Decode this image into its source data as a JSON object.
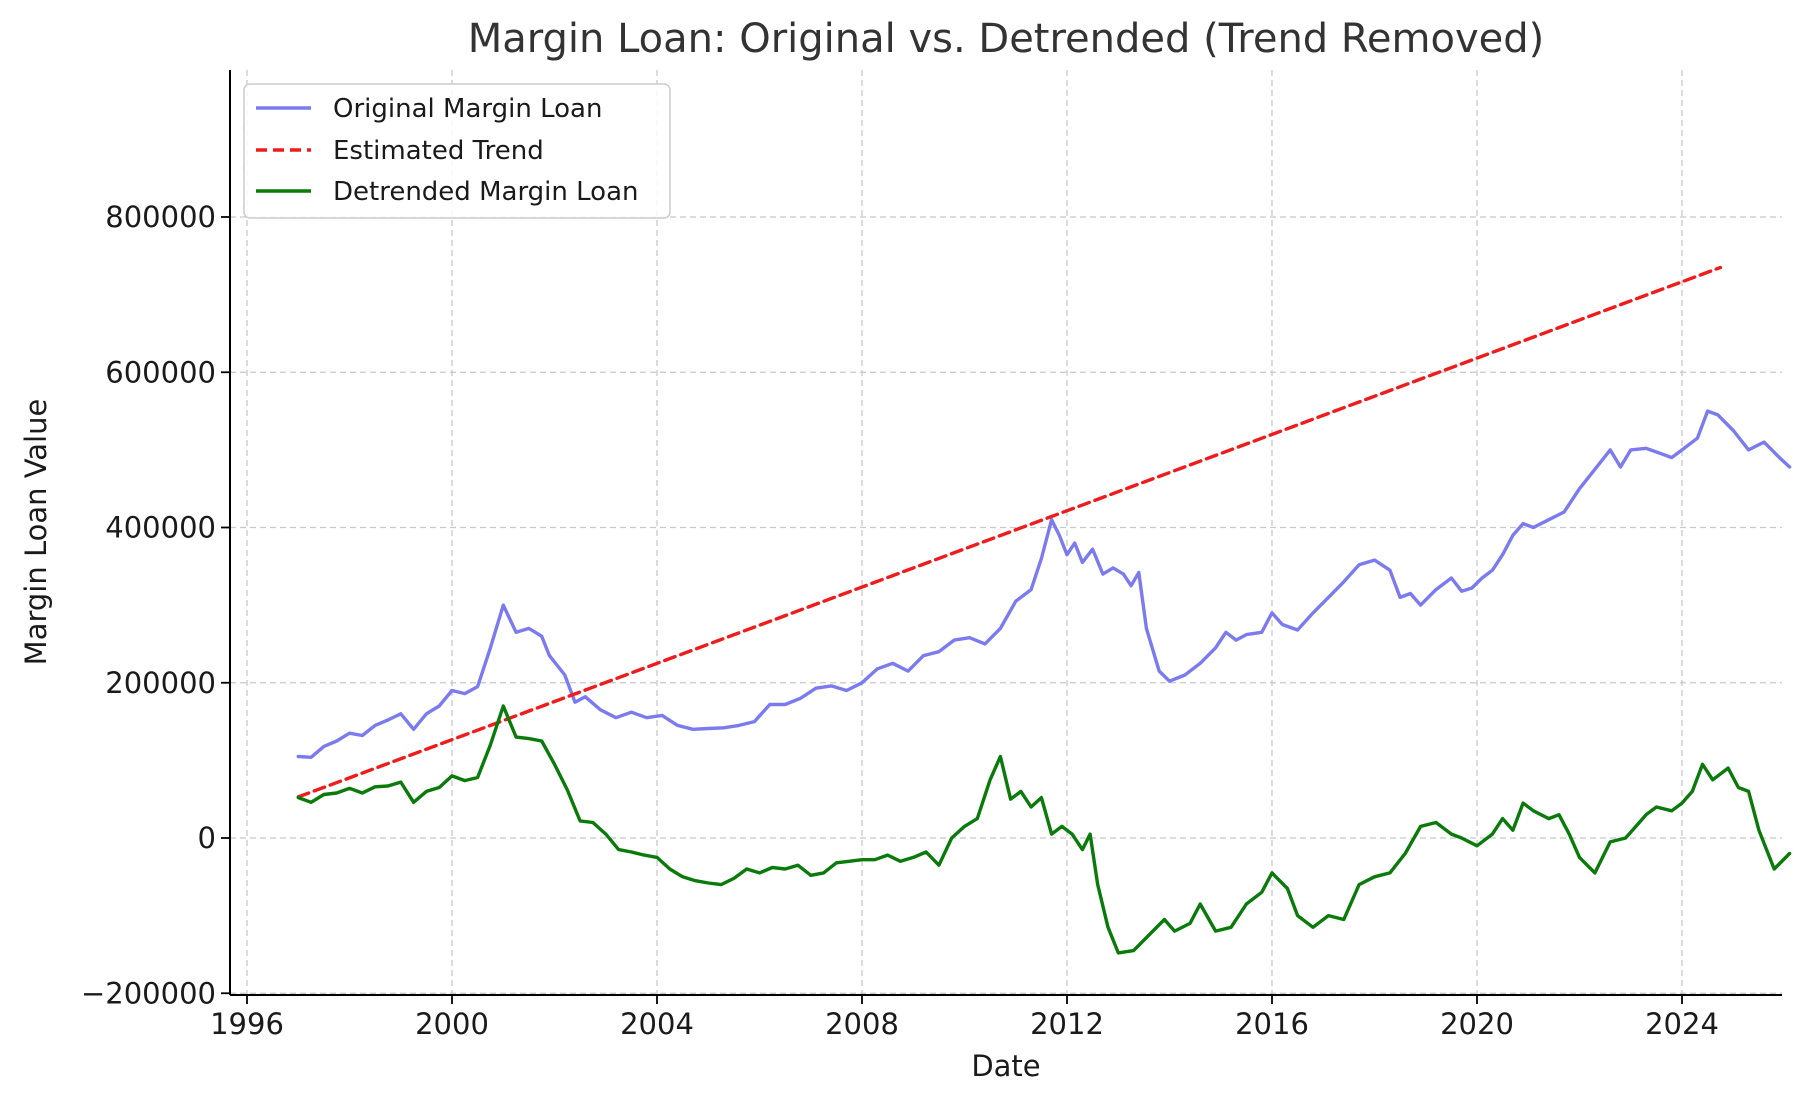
{
  "chart_data": {
    "type": "line",
    "title": "Margin Loan: Original vs. Detrended (Trend Removed)",
    "xlabel": "Date",
    "ylabel": "Margin Loan Value",
    "xlim": [
      1995.7,
      2026.2
    ],
    "ylim": [
      -200000,
      1000000
    ],
    "x_ticks": [
      1996,
      2000,
      2004,
      2008,
      2012,
      2016,
      2020,
      2024
    ],
    "x_tick_labels": [
      "1996",
      "2000",
      "2004",
      "2008",
      "2012",
      "2016",
      "2020",
      "2024"
    ],
    "y_ticks": [
      -200000,
      0,
      200000,
      400000,
      600000,
      800000
    ],
    "y_tick_labels": [
      "−200000",
      "0",
      "200000",
      "400000",
      "600000",
      "800000"
    ],
    "grid": true,
    "legend_position": "top-left",
    "series": [
      {
        "name": "Original Margin Loan",
        "color": "#7b7bef",
        "style": "solid",
        "points": [
          [
            1997.0,
            105000
          ],
          [
            1997.25,
            104000
          ],
          [
            1997.5,
            118000
          ],
          [
            1997.75,
            125000
          ],
          [
            1998.0,
            135000
          ],
          [
            1998.25,
            132000
          ],
          [
            1998.5,
            145000
          ],
          [
            1998.75,
            152000
          ],
          [
            1999.0,
            160000
          ],
          [
            1999.25,
            140000
          ],
          [
            1999.5,
            160000
          ],
          [
            1999.75,
            170000
          ],
          [
            2000.0,
            190000
          ],
          [
            2000.25,
            186000
          ],
          [
            2000.5,
            195000
          ],
          [
            2000.75,
            245000
          ],
          [
            2001.0,
            300000
          ],
          [
            2001.25,
            265000
          ],
          [
            2001.5,
            270000
          ],
          [
            2001.75,
            260000
          ],
          [
            2001.9,
            235000
          ],
          [
            2002.2,
            210000
          ],
          [
            2002.4,
            175000
          ],
          [
            2002.6,
            182000
          ],
          [
            2002.9,
            165000
          ],
          [
            2003.2,
            155000
          ],
          [
            2003.5,
            162000
          ],
          [
            2003.8,
            155000
          ],
          [
            2004.1,
            158000
          ],
          [
            2004.4,
            145000
          ],
          [
            2004.7,
            140000
          ],
          [
            2005.0,
            141000
          ],
          [
            2005.3,
            142000
          ],
          [
            2005.6,
            145000
          ],
          [
            2005.9,
            150000
          ],
          [
            2006.2,
            172000
          ],
          [
            2006.5,
            172000
          ],
          [
            2006.8,
            180000
          ],
          [
            2007.1,
            193000
          ],
          [
            2007.4,
            196000
          ],
          [
            2007.7,
            190000
          ],
          [
            2008.0,
            200000
          ],
          [
            2008.3,
            218000
          ],
          [
            2008.6,
            225000
          ],
          [
            2008.9,
            215000
          ],
          [
            2009.2,
            235000
          ],
          [
            2009.5,
            240000
          ],
          [
            2009.8,
            255000
          ],
          [
            2010.1,
            258000
          ],
          [
            2010.4,
            250000
          ],
          [
            2010.7,
            270000
          ],
          [
            2011.0,
            305000
          ],
          [
            2011.3,
            320000
          ],
          [
            2011.5,
            360000
          ],
          [
            2011.7,
            410000
          ],
          [
            2011.85,
            390000
          ],
          [
            2012.0,
            365000
          ],
          [
            2012.15,
            380000
          ],
          [
            2012.3,
            355000
          ],
          [
            2012.5,
            372000
          ],
          [
            2012.7,
            340000
          ],
          [
            2012.9,
            348000
          ],
          [
            2013.1,
            340000
          ],
          [
            2013.25,
            325000
          ],
          [
            2013.4,
            342000
          ],
          [
            2013.55,
            270000
          ],
          [
            2013.8,
            215000
          ],
          [
            2014.0,
            202000
          ],
          [
            2014.3,
            210000
          ],
          [
            2014.6,
            225000
          ],
          [
            2014.9,
            245000
          ],
          [
            2015.1,
            265000
          ],
          [
            2015.3,
            255000
          ],
          [
            2015.5,
            262000
          ],
          [
            2015.8,
            265000
          ],
          [
            2016.0,
            290000
          ],
          [
            2016.2,
            275000
          ],
          [
            2016.5,
            268000
          ],
          [
            2016.8,
            290000
          ],
          [
            2017.1,
            310000
          ],
          [
            2017.4,
            330000
          ],
          [
            2017.7,
            352000
          ],
          [
            2018.0,
            358000
          ],
          [
            2018.3,
            345000
          ],
          [
            2018.5,
            310000
          ],
          [
            2018.7,
            315000
          ],
          [
            2018.9,
            300000
          ],
          [
            2019.2,
            320000
          ],
          [
            2019.5,
            335000
          ],
          [
            2019.7,
            318000
          ],
          [
            2019.9,
            322000
          ],
          [
            2020.1,
            335000
          ],
          [
            2020.3,
            345000
          ],
          [
            2020.5,
            365000
          ],
          [
            2020.7,
            390000
          ],
          [
            2020.9,
            405000
          ],
          [
            2021.1,
            400000
          ],
          [
            2021.4,
            410000
          ],
          [
            2021.7,
            420000
          ],
          [
            2022.0,
            450000
          ],
          [
            2022.3,
            475000
          ],
          [
            2022.6,
            500000
          ],
          [
            2022.8,
            478000
          ],
          [
            2023.0,
            500000
          ],
          [
            2023.3,
            502000
          ],
          [
            2023.6,
            495000
          ],
          [
            2023.8,
            490000
          ],
          [
            2024.0,
            500000
          ],
          [
            2024.3,
            515000
          ],
          [
            2024.5,
            550000
          ],
          [
            2024.7,
            545000
          ],
          [
            2025.0,
            525000
          ],
          [
            2025.3,
            500000
          ],
          [
            2025.6,
            510000
          ],
          [
            2025.9,
            490000
          ],
          [
            2026.1,
            478000
          ]
        ]
      },
      {
        "name": "Estimated Trend",
        "color": "#ee1c1c",
        "style": "dashed",
        "points": [
          [
            1997.0,
            53000
          ],
          [
            2024.75,
            735000
          ]
        ]
      },
      {
        "name": "Detrended Margin Loan",
        "color": "#0a7a0a",
        "style": "solid",
        "points": [
          [
            1997.0,
            52000
          ],
          [
            1997.25,
            46000
          ],
          [
            1997.5,
            56000
          ],
          [
            1997.75,
            58000
          ],
          [
            1998.0,
            64000
          ],
          [
            1998.25,
            58000
          ],
          [
            1998.5,
            66000
          ],
          [
            1998.75,
            67000
          ],
          [
            1999.0,
            72000
          ],
          [
            1999.25,
            46000
          ],
          [
            1999.5,
            60000
          ],
          [
            1999.75,
            65000
          ],
          [
            2000.0,
            80000
          ],
          [
            2000.25,
            74000
          ],
          [
            2000.5,
            78000
          ],
          [
            2000.75,
            120000
          ],
          [
            2001.0,
            170000
          ],
          [
            2001.25,
            130000
          ],
          [
            2001.5,
            128000
          ],
          [
            2001.75,
            125000
          ],
          [
            2002.0,
            95000
          ],
          [
            2002.25,
            62000
          ],
          [
            2002.5,
            22000
          ],
          [
            2002.75,
            20000
          ],
          [
            2003.0,
            5000
          ],
          [
            2003.25,
            -15000
          ],
          [
            2003.5,
            -18000
          ],
          [
            2003.75,
            -22000
          ],
          [
            2004.0,
            -25000
          ],
          [
            2004.25,
            -40000
          ],
          [
            2004.5,
            -50000
          ],
          [
            2004.75,
            -55000
          ],
          [
            2005.0,
            -58000
          ],
          [
            2005.25,
            -60000
          ],
          [
            2005.5,
            -52000
          ],
          [
            2005.75,
            -40000
          ],
          [
            2006.0,
            -45000
          ],
          [
            2006.25,
            -38000
          ],
          [
            2006.5,
            -40000
          ],
          [
            2006.75,
            -35000
          ],
          [
            2007.0,
            -48000
          ],
          [
            2007.25,
            -45000
          ],
          [
            2007.5,
            -32000
          ],
          [
            2007.75,
            -30000
          ],
          [
            2008.0,
            -28000
          ],
          [
            2008.25,
            -28000
          ],
          [
            2008.5,
            -22000
          ],
          [
            2008.75,
            -30000
          ],
          [
            2009.0,
            -25000
          ],
          [
            2009.25,
            -18000
          ],
          [
            2009.5,
            -35000
          ],
          [
            2009.75,
            0
          ],
          [
            2010.0,
            15000
          ],
          [
            2010.25,
            25000
          ],
          [
            2010.5,
            75000
          ],
          [
            2010.7,
            105000
          ],
          [
            2010.9,
            50000
          ],
          [
            2011.1,
            60000
          ],
          [
            2011.3,
            40000
          ],
          [
            2011.5,
            52000
          ],
          [
            2011.7,
            5000
          ],
          [
            2011.9,
            15000
          ],
          [
            2012.1,
            5000
          ],
          [
            2012.3,
            -15000
          ],
          [
            2012.45,
            5000
          ],
          [
            2012.6,
            -60000
          ],
          [
            2012.8,
            -115000
          ],
          [
            2013.0,
            -148000
          ],
          [
            2013.3,
            -145000
          ],
          [
            2013.6,
            -125000
          ],
          [
            2013.9,
            -105000
          ],
          [
            2014.1,
            -120000
          ],
          [
            2014.4,
            -110000
          ],
          [
            2014.6,
            -85000
          ],
          [
            2014.9,
            -120000
          ],
          [
            2015.2,
            -115000
          ],
          [
            2015.5,
            -85000
          ],
          [
            2015.8,
            -70000
          ],
          [
            2016.0,
            -45000
          ],
          [
            2016.3,
            -65000
          ],
          [
            2016.5,
            -100000
          ],
          [
            2016.8,
            -115000
          ],
          [
            2017.1,
            -100000
          ],
          [
            2017.4,
            -105000
          ],
          [
            2017.7,
            -60000
          ],
          [
            2018.0,
            -50000
          ],
          [
            2018.3,
            -45000
          ],
          [
            2018.6,
            -20000
          ],
          [
            2018.9,
            15000
          ],
          [
            2019.2,
            20000
          ],
          [
            2019.5,
            5000
          ],
          [
            2019.7,
            0
          ],
          [
            2020.0,
            -10000
          ],
          [
            2020.3,
            5000
          ],
          [
            2020.5,
            25000
          ],
          [
            2020.7,
            10000
          ],
          [
            2020.9,
            45000
          ],
          [
            2021.1,
            35000
          ],
          [
            2021.4,
            25000
          ],
          [
            2021.6,
            30000
          ],
          [
            2021.8,
            5000
          ],
          [
            2022.0,
            -25000
          ],
          [
            2022.3,
            -45000
          ],
          [
            2022.6,
            -5000
          ],
          [
            2022.9,
            0
          ],
          [
            2023.1,
            15000
          ],
          [
            2023.3,
            30000
          ],
          [
            2023.5,
            40000
          ],
          [
            2023.8,
            35000
          ],
          [
            2024.0,
            45000
          ],
          [
            2024.2,
            60000
          ],
          [
            2024.4,
            95000
          ],
          [
            2024.6,
            75000
          ],
          [
            2024.9,
            90000
          ],
          [
            2025.1,
            65000
          ],
          [
            2025.3,
            60000
          ],
          [
            2025.5,
            10000
          ],
          [
            2025.8,
            -40000
          ],
          [
            2026.1,
            -20000
          ]
        ]
      }
    ]
  }
}
